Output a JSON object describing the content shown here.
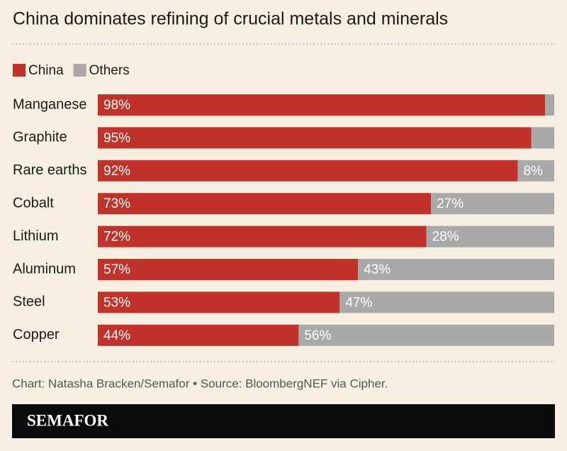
{
  "chart_data": {
    "type": "stacked-bar-horizontal",
    "title": "China dominates refining of crucial metals and minerals",
    "categories": [
      "Manganese",
      "Graphite",
      "Rare earths",
      "Cobalt",
      "Lithium",
      "Aluminum",
      "Steel",
      "Copper"
    ],
    "series": [
      {
        "name": "China",
        "color": "#c1332a",
        "values": [
          98,
          95,
          92,
          73,
          72,
          57,
          53,
          44
        ],
        "value_labels": [
          "98%",
          "95%",
          "92%",
          "73%",
          "72%",
          "57%",
          "53%",
          "44%"
        ]
      },
      {
        "name": "Others",
        "color": "#a9a9a9",
        "values": [
          2,
          5,
          8,
          27,
          28,
          43,
          47,
          56
        ],
        "value_labels": [
          null,
          null,
          "8%",
          "27%",
          "28%",
          "43%",
          "47%",
          "56%"
        ]
      }
    ],
    "xlim": [
      0,
      100
    ],
    "legend": "top-left",
    "source": "Chart: Natasha Bracken/Semafor • Source: BloombergNEF via Cipher.",
    "logo": "SEMAFOR"
  }
}
